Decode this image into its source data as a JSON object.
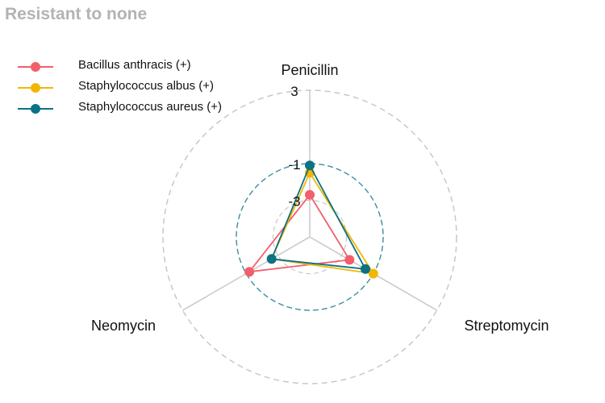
{
  "title": "Resistant to none",
  "colors": {
    "Bacillus anthracis (+)": "#f25e6b",
    "Staphylococcus albus (+)": "#f2b705",
    "Staphylococcus aureus (+)": "#0b7285",
    "grid": "#c8c8c8",
    "threshold": "#3a8fa0",
    "title": "#b3b3b3"
  },
  "chart_data": {
    "type": "radar",
    "title": "Resistant to none",
    "axes": [
      "Penicillin",
      "Streptomycin",
      "Neomycin"
    ],
    "radial_tick_labels": [
      "-3",
      "-1",
      "3"
    ],
    "radial_ticks": [
      -3,
      -1,
      3
    ],
    "rlim": [
      -5,
      3
    ],
    "reference_circle": -1,
    "legend_position": "top-left",
    "series": [
      {
        "name": "Bacillus anthracis (+)",
        "values": [
          -2.7,
          -2.5,
          -1.2
        ]
      },
      {
        "name": "Staphylococcus albus (+)",
        "values": [
          -1.5,
          -1.0,
          -2.6
        ]
      },
      {
        "name": "Staphylococcus aureus (+)",
        "values": [
          -1.1,
          -1.5,
          -2.6
        ]
      }
    ]
  }
}
